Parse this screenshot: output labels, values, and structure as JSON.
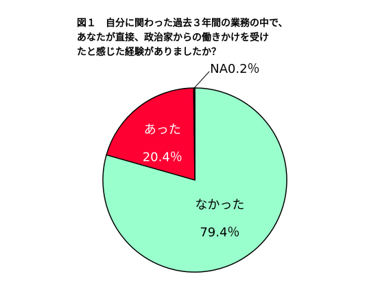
{
  "title": {
    "figure_label": "図１",
    "lines": [
      "自分に関わった過去３年間の業務の中で、",
      "あなたが直接、政治家からの働きかけを受け",
      "たと感じた経験がありましたか？"
    ]
  },
  "chart_data": {
    "type": "pie",
    "start": "12 o'clock, clockwise",
    "slices": [
      {
        "label": "なかった",
        "value": 79.4,
        "value_text": "79.4％",
        "color": "#99ffcc",
        "label_color": "#000000"
      },
      {
        "label": "あった",
        "value": 20.4,
        "value_text": "20.4％",
        "color": "#ff0033",
        "label_color": "#ffffff"
      },
      {
        "label": "NA",
        "value": 0.2,
        "value_text": "NA0.2％",
        "color": "#ffcc00",
        "label_color": "#000000"
      }
    ]
  }
}
